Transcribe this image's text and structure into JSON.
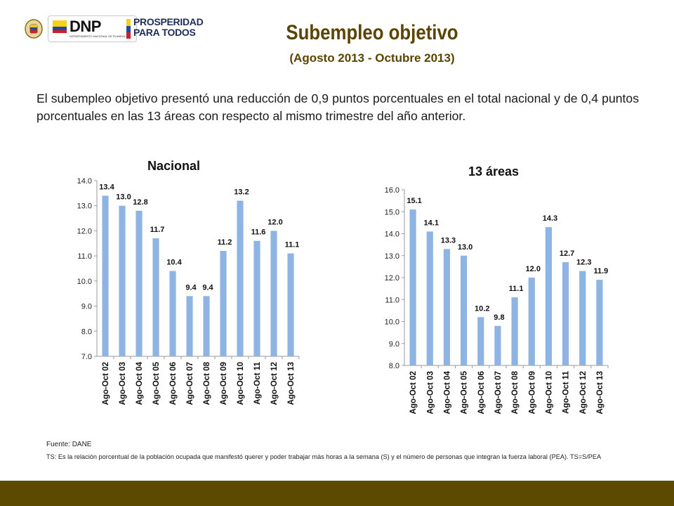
{
  "header": {
    "dnp_logo_text": "DNP",
    "dnp_logo_subtext": "DEPARTAMENTO NACIONAL DE PLANEACIÓN",
    "prosperidad_line1": "PROSPERIDAD",
    "prosperidad_line2": "PARA TODOS"
  },
  "title": "Subempleo objetivo",
  "subtitle": "(Agosto 2013 - Octubre 2013)",
  "paragraph": "El subempleo objetivo presentó una reducción de 0,9 puntos porcentuales en el total nacional y de 0,4 puntos porcentuales en las 13 áreas con respecto al mismo trimestre del año anterior.",
  "colors": {
    "bar": "#8db4e2",
    "title": "#5a4400",
    "footer": "#5c4a00"
  },
  "chart_data": [
    {
      "type": "bar",
      "title": "Nacional",
      "categories": [
        "Ago-Oct 02",
        "Ago-Oct 03",
        "Ago-Oct 04",
        "Ago-Oct 05",
        "Ago-Oct 06",
        "Ago-Oct 07",
        "Ago-Oct 08",
        "Ago-Oct 09",
        "Ago-Oct 10",
        "Ago-Oct 11",
        "Ago-Oct 12",
        "Ago-Oct 13"
      ],
      "values": [
        13.4,
        13.0,
        12.8,
        11.7,
        10.4,
        9.4,
        9.4,
        11.2,
        13.2,
        11.6,
        12.0,
        11.1
      ],
      "value_labels": [
        "13.4",
        "13.0",
        "12.8",
        "11.7",
        "10.4",
        "9.4",
        "9.4",
        "11.2",
        "13.2",
        "11.6",
        "12.0",
        "11.1"
      ],
      "yticks": [
        "14.0",
        "13.0",
        "12.0",
        "11.0",
        "10.0",
        "9.0",
        "8.0",
        "7.0"
      ],
      "ylim": [
        7,
        14
      ],
      "grid": false
    },
    {
      "type": "bar",
      "title": "13 áreas",
      "categories": [
        "Ago-Oct 02",
        "Ago-Oct 03",
        "Ago-Oct 04",
        "Ago-Oct 05",
        "Ago-Oct 06",
        "Ago-Oct 07",
        "Ago-Oct 08",
        "Ago-Oct 09",
        "Ago-Oct 10",
        "Ago-Oct 11",
        "Ago-Oct 12",
        "Ago-Oct 13"
      ],
      "values": [
        15.1,
        14.1,
        13.3,
        13.0,
        10.2,
        9.8,
        11.1,
        12.0,
        14.3,
        12.7,
        12.3,
        11.9
      ],
      "value_labels": [
        "15.1",
        "14.1",
        "13.3",
        "13.0",
        "10.2",
        "9.8",
        "11.1",
        "12.0",
        "14.3",
        "12.7",
        "12.3",
        "11.9"
      ],
      "yticks": [
        "16.0",
        "15.0",
        "14.0",
        "13.0",
        "12.0",
        "11.0",
        "10.0",
        "9.0",
        "8.0"
      ],
      "ylim": [
        8,
        16
      ],
      "grid": false
    }
  ],
  "source": "Fuente: DANE",
  "note": "TS: Es la relación porcentual de la población ocupada que manifestó querer y poder trabajar más horas a la semana (S) y el número de personas que integran la fuerza laboral (PEA). TS=S/PEA"
}
